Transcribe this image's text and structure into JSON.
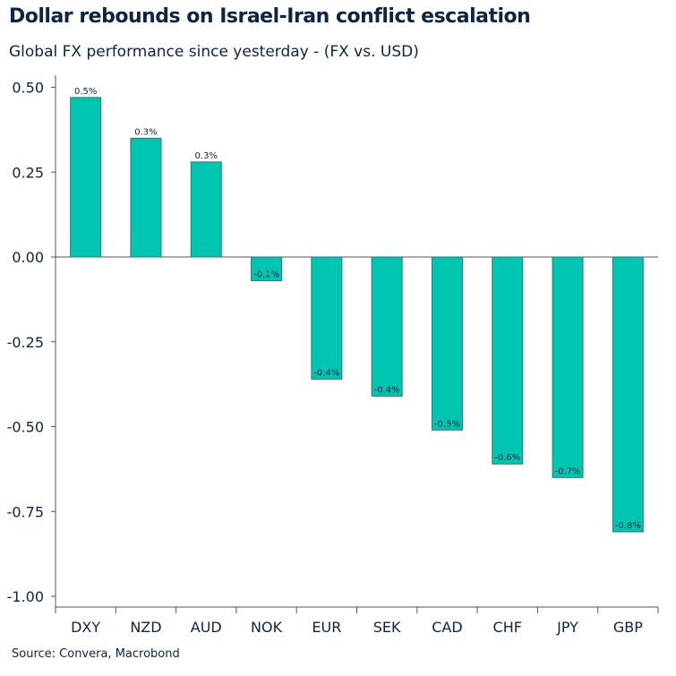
{
  "chart_data": {
    "type": "bar",
    "title": "Dollar rebounds on Israel-Iran conflict escalation",
    "subtitle": "Global FX performance since yesterday - (FX vs. USD)",
    "source": "Source: Convera, Macrobond",
    "categories": [
      "DXY",
      "NZD",
      "AUD",
      "NOK",
      "EUR",
      "SEK",
      "CAD",
      "CHF",
      "JPY",
      "GBP"
    ],
    "values": [
      0.47,
      0.35,
      0.28,
      -0.07,
      -0.36,
      -0.41,
      -0.51,
      -0.61,
      -0.65,
      -0.81
    ],
    "data_labels": [
      "0.5%",
      "0.3%",
      "0.3%",
      "-0.1%",
      "-0.4%",
      "-0.4%",
      "-0.5%",
      "-0.6%",
      "-0.7%",
      "-0.8%"
    ],
    "y_ticks": [
      "0.50",
      "0.25",
      "0.00",
      "-0.25",
      "-0.50",
      "-0.75",
      "-1.00"
    ],
    "y_tick_values": [
      0.5,
      0.25,
      0,
      -0.25,
      -0.5,
      -0.75,
      -1.0
    ],
    "ylim": [
      -1.03,
      0.53
    ],
    "xlabel": "",
    "ylabel": "",
    "grid": false,
    "legend": "none",
    "bar_color": "#00c5b0",
    "bar_edge_color": "#2a7d78",
    "text_color": "#0b2545"
  }
}
